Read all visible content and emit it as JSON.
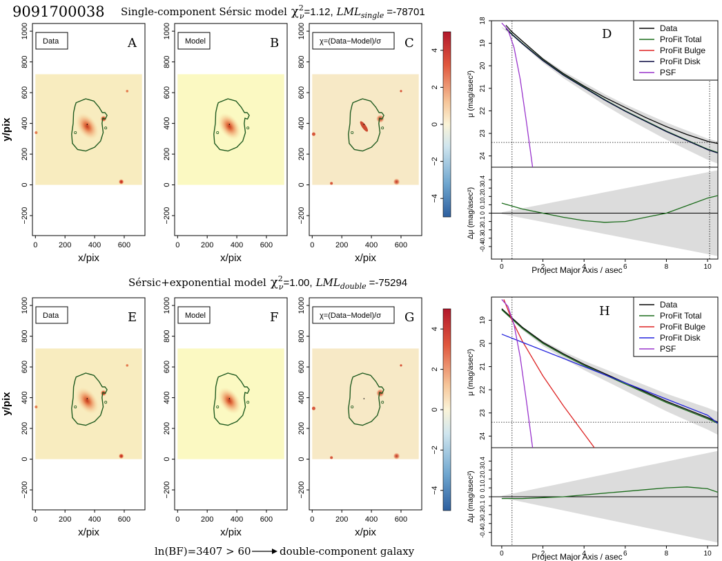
{
  "figure": {
    "object_id": "9091700038",
    "row1_title": {
      "lead": "Single-component Sérsic model",
      "chi": "χ",
      "chi_sup": "2",
      "chi_sub": "ν",
      "chi_val": "=1.12,",
      "lml_italic": "LML",
      "lml_sub": "single",
      "lml_val": "=-78701"
    },
    "row2_title": {
      "lead": "Sérsic+exponential model",
      "chi": "χ",
      "chi_sup": "2",
      "chi_sub": "ν",
      "chi_val": "=1.00,",
      "lml_italic": "LML",
      "lml_sub": "double",
      "lml_val": "=-75294"
    },
    "footer": {
      "text": "ln(BF)=3407 > 60",
      "result": "double-component galaxy"
    }
  },
  "image_axes": {
    "xlabel": "x/pix",
    "ylabel": "y/pix",
    "x_ticks": [
      "0",
      "200",
      "400",
      "600"
    ],
    "y_ticks": [
      "−200",
      "0",
      "200",
      "400",
      "600",
      "800",
      "1000"
    ]
  },
  "colorbar": {
    "ticks": [
      "4",
      "2",
      "0",
      "−2",
      "−4"
    ],
    "range": [
      -5,
      5
    ]
  },
  "panels": [
    {
      "letter": "A",
      "label": "Data"
    },
    {
      "letter": "B",
      "label": "Model"
    },
    {
      "letter": "C",
      "label": "χ=(Data−Model)/σ"
    },
    {
      "letter": "E",
      "label": "Data"
    },
    {
      "letter": "F",
      "label": "Model"
    },
    {
      "letter": "G",
      "label": "χ=(Data−Model)/σ"
    }
  ],
  "chart_data": [
    {
      "type": "line",
      "panel": "D",
      "title": "",
      "xlabel": "Project Major Axis / asec",
      "ylabel_top": "μ (mag/asec²)",
      "ylabel_bottom": "Δμ (mag/asec²)",
      "xlim": [
        -0.5,
        10.5
      ],
      "ylim_top": [
        18,
        24.5
      ],
      "ylim_bottom": [
        -0.55,
        0.55
      ],
      "x_ticks": [
        0,
        2,
        4,
        6,
        8,
        10
      ],
      "y_ticks_top": [
        18,
        19,
        20,
        21,
        22,
        23,
        24
      ],
      "y_ticks_bottom": [
        -0.4,
        -0.3,
        -0.2,
        -0.1,
        0.0,
        0.1,
        0.2,
        0.3,
        0.4
      ],
      "vlines": [
        0.5,
        10.1
      ],
      "hline": 23.4,
      "legend": [
        "Data",
        "ProFit Total",
        "ProFit Bulge",
        "ProFit Disk",
        "PSF"
      ],
      "series": [
        {
          "name": "Data",
          "color": "#000000",
          "x": [
            0.2,
            0.5,
            1,
            2,
            3,
            4,
            5,
            6,
            7,
            8,
            9,
            10,
            10.5
          ],
          "y": [
            18.2,
            18.5,
            18.9,
            19.7,
            20.35,
            20.9,
            21.4,
            21.85,
            22.3,
            22.7,
            23.05,
            23.35,
            23.45
          ]
        },
        {
          "name": "ProFit Total",
          "color": "#1a6b1a",
          "x": [
            0.2,
            0.5,
            1,
            2,
            3,
            4,
            5,
            6,
            7,
            8,
            9,
            10,
            10.5
          ],
          "y": [
            18.3,
            18.6,
            19.0,
            19.75,
            20.4,
            20.95,
            21.5,
            22.0,
            22.45,
            22.9,
            23.3,
            23.7,
            23.85
          ]
        },
        {
          "name": "ProFit Disk",
          "color": "#0a0a40",
          "x": [
            0.2,
            0.5,
            1,
            2,
            3,
            4,
            5,
            6,
            7,
            8,
            9,
            10,
            10.5
          ],
          "y": [
            18.35,
            18.62,
            19.02,
            19.77,
            20.42,
            20.97,
            21.52,
            22.02,
            22.47,
            22.92,
            23.32,
            23.72,
            23.87
          ]
        },
        {
          "name": "PSF",
          "color": "#9933cc",
          "x": [
            0,
            0.3,
            0.6,
            0.9,
            1.2,
            1.5
          ],
          "y": [
            18.1,
            18.4,
            19.2,
            20.6,
            22.5,
            24.5
          ]
        }
      ],
      "residual": {
        "name": "ProFit Total",
        "x": [
          0,
          1,
          2,
          3,
          4,
          5,
          6,
          7,
          8,
          9,
          10,
          10.5
        ],
        "y": [
          0.12,
          0.05,
          0.0,
          -0.05,
          -0.09,
          -0.11,
          -0.1,
          -0.05,
          0.0,
          0.09,
          0.18,
          0.21
        ]
      }
    },
    {
      "type": "line",
      "panel": "H",
      "title": "",
      "xlabel": "Project Major Axis / asec",
      "ylabel_top": "μ (mag/asec²)",
      "ylabel_bottom": "Δμ (mag/asec²)",
      "xlim": [
        -0.5,
        10.5
      ],
      "ylim_top": [
        18,
        24.5
      ],
      "ylim_bottom": [
        -0.55,
        0.55
      ],
      "x_ticks": [
        0,
        2,
        4,
        6,
        8,
        10
      ],
      "y_ticks_top": [
        19,
        20,
        21,
        22,
        23,
        24
      ],
      "y_ticks_bottom": [
        -0.4,
        -0.3,
        -0.2,
        -0.1,
        0.0,
        0.1,
        0.2,
        0.3,
        0.4
      ],
      "vlines": [
        0.5,
        10.5
      ],
      "hline": 23.4,
      "legend": [
        "Data",
        "ProFit Total",
        "ProFit Bulge",
        "ProFit Disk",
        "PSF"
      ],
      "series": [
        {
          "name": "Data",
          "color": "#000000",
          "x": [
            0,
            0.5,
            1,
            2,
            3,
            4,
            5,
            6,
            7,
            8,
            9,
            10,
            10.5
          ],
          "y": [
            18.5,
            18.9,
            19.3,
            19.95,
            20.45,
            20.9,
            21.3,
            21.7,
            22.1,
            22.5,
            22.85,
            23.2,
            23.4
          ]
        },
        {
          "name": "ProFit Total",
          "color": "#1a6b1a",
          "x": [
            0,
            0.5,
            1,
            2,
            3,
            4,
            5,
            6,
            7,
            8,
            9,
            10,
            10.5
          ],
          "y": [
            18.55,
            18.95,
            19.35,
            20.0,
            20.5,
            20.95,
            21.35,
            21.75,
            22.15,
            22.55,
            22.9,
            23.25,
            23.45
          ]
        },
        {
          "name": "ProFit Bulge",
          "color": "#dd2222",
          "x": [
            0.1,
            0.5,
            1,
            2,
            3,
            4,
            4.5
          ],
          "y": [
            18.1,
            19.0,
            19.9,
            21.4,
            22.7,
            23.9,
            24.5
          ]
        },
        {
          "name": "ProFit Disk",
          "color": "#2222dd",
          "x": [
            0,
            2,
            4,
            6,
            8,
            10,
            10.5
          ],
          "y": [
            19.6,
            20.3,
            21.0,
            21.7,
            22.4,
            23.1,
            23.45
          ]
        },
        {
          "name": "PSF",
          "color": "#9933cc",
          "x": [
            0,
            0.3,
            0.6,
            0.9,
            1.2,
            1.5
          ],
          "y": [
            18.1,
            18.4,
            19.2,
            20.6,
            22.5,
            24.5
          ]
        }
      ],
      "residual": {
        "name": "ProFit Total",
        "x": [
          0,
          1,
          2,
          3,
          4,
          5,
          6,
          7,
          8,
          9,
          10,
          10.5
        ],
        "y": [
          -0.02,
          -0.02,
          -0.01,
          0.0,
          0.02,
          0.04,
          0.06,
          0.08,
          0.1,
          0.11,
          0.09,
          0.05
        ]
      }
    }
  ]
}
